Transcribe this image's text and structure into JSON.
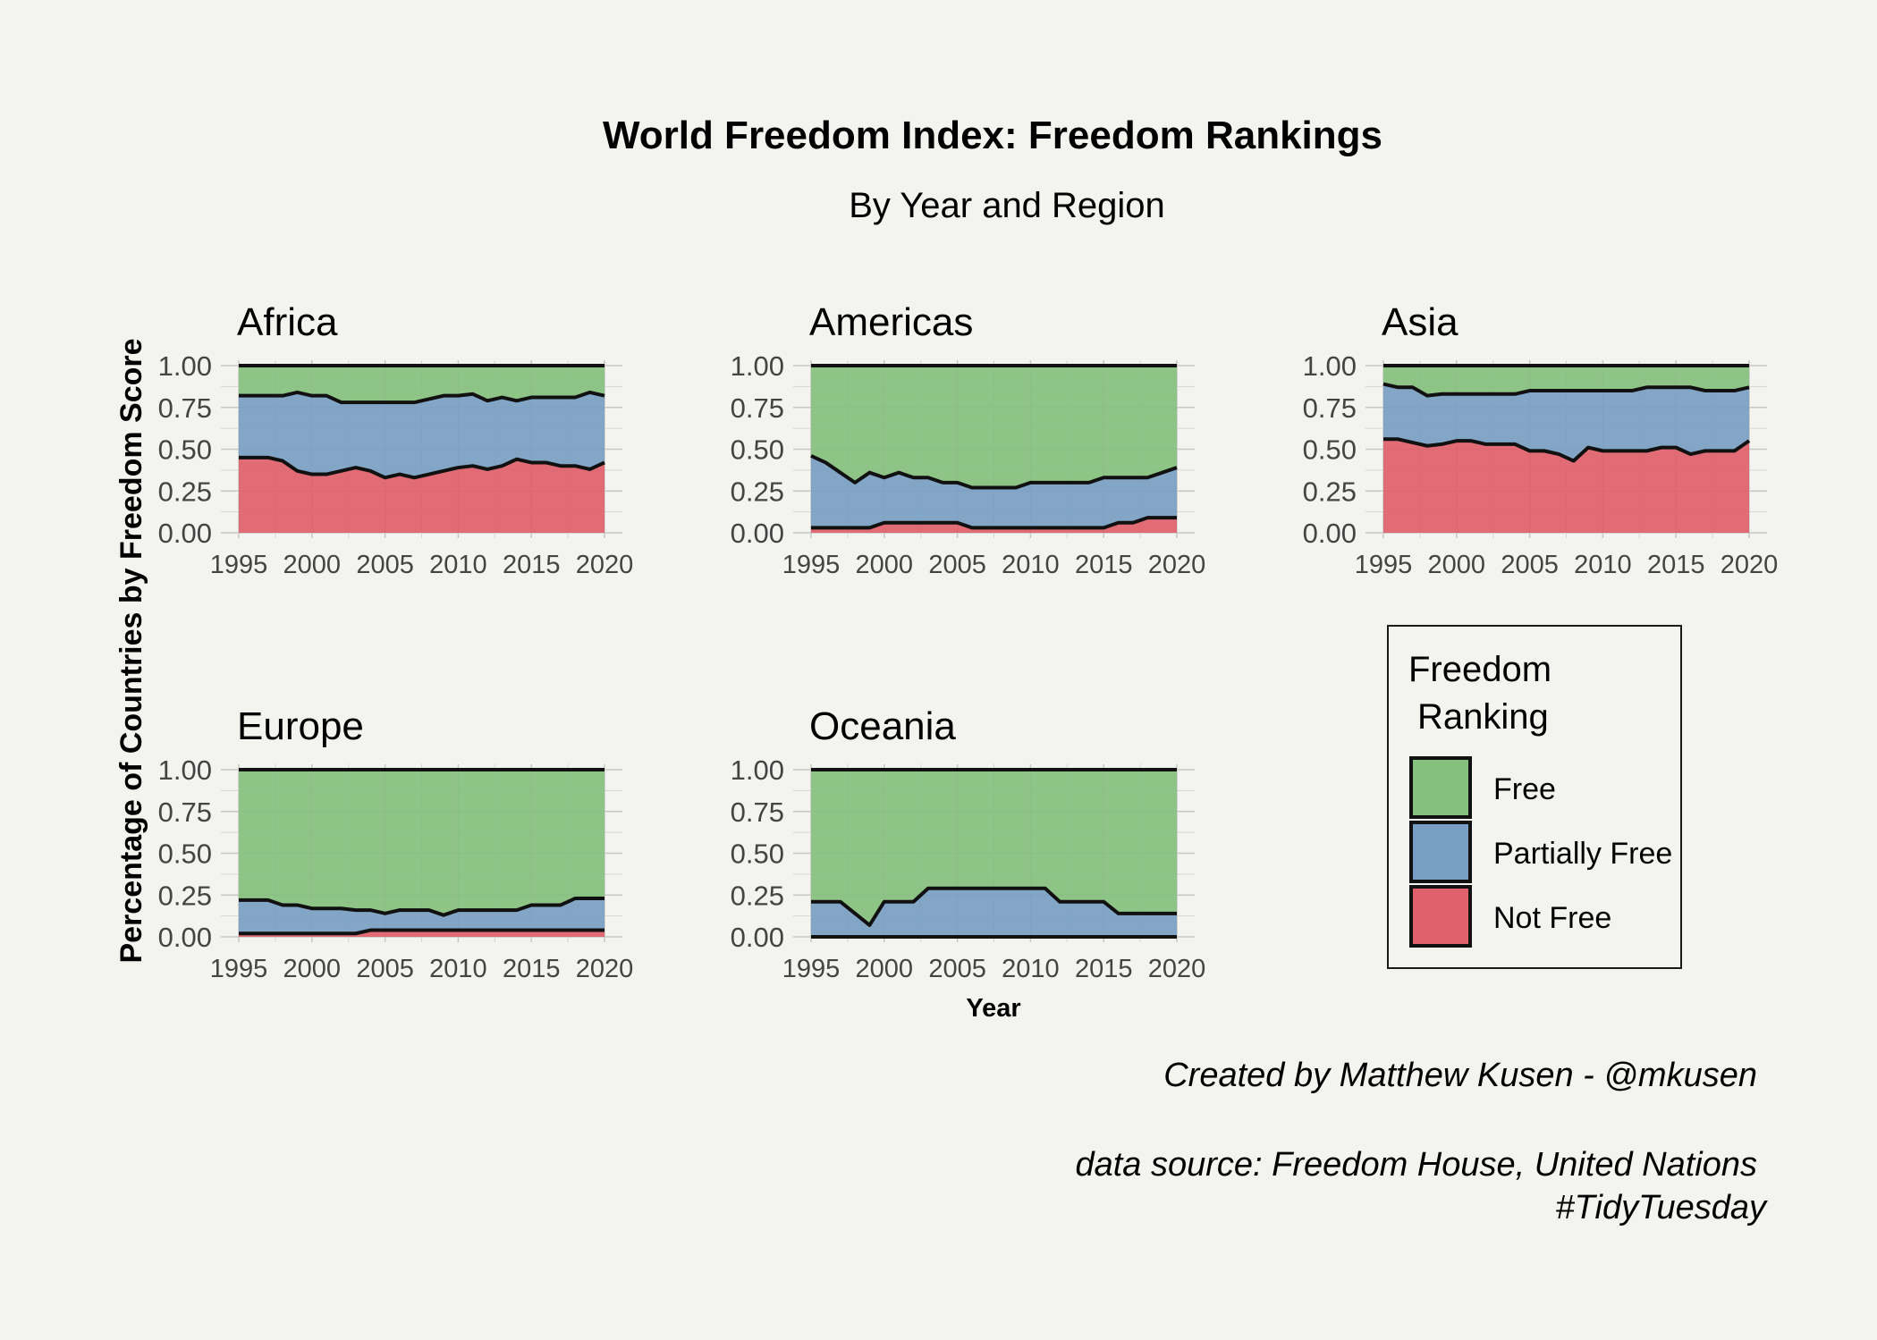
{
  "chart_data": {
    "type": "area",
    "title": "World Freedom Index: Freedom Rankings",
    "subtitle": "By Year and Region",
    "xlabel": "Year",
    "ylabel": "Percentage of Countries by Freedom Score",
    "xlim": [
      1995,
      2020
    ],
    "ylim": [
      0,
      1
    ],
    "x_ticks": [
      "1995",
      "2000",
      "2005",
      "2010",
      "2015",
      "2020"
    ],
    "y_ticks": [
      "0.00",
      "0.25",
      "0.50",
      "0.75",
      "1.00"
    ],
    "grid": true,
    "stacked": true,
    "legend": {
      "title_line1": "Freedom",
      "title_line2": "Ranking",
      "position": "right",
      "entries": [
        {
          "name": "Free",
          "color": "#86c07f"
        },
        {
          "name": "Partially Free",
          "color": "#7a9fc4"
        },
        {
          "name": "Not Free",
          "color": "#e0616c"
        }
      ]
    },
    "caption_line1": "Created by Matthew Kusen - @mkusen",
    "caption_line2": "data source: Freedom House, United Nations",
    "caption_line3": "#TidyTuesday",
    "x": [
      1995,
      1996,
      1997,
      1998,
      1999,
      2000,
      2001,
      2002,
      2003,
      2004,
      2005,
      2006,
      2007,
      2008,
      2009,
      2010,
      2011,
      2012,
      2013,
      2014,
      2015,
      2016,
      2017,
      2018,
      2019,
      2020
    ],
    "panels": [
      {
        "region": "Africa",
        "not_free": [
          0.45,
          0.45,
          0.45,
          0.43,
          0.37,
          0.35,
          0.35,
          0.37,
          0.39,
          0.37,
          0.33,
          0.35,
          0.33,
          0.35,
          0.37,
          0.39,
          0.4,
          0.38,
          0.4,
          0.44,
          0.42,
          0.42,
          0.4,
          0.4,
          0.38,
          0.42
        ],
        "not_free_plus_partial": [
          0.82,
          0.82,
          0.82,
          0.82,
          0.84,
          0.82,
          0.82,
          0.78,
          0.78,
          0.78,
          0.78,
          0.78,
          0.78,
          0.8,
          0.82,
          0.82,
          0.83,
          0.79,
          0.81,
          0.79,
          0.81,
          0.81,
          0.81,
          0.81,
          0.84,
          0.82
        ]
      },
      {
        "region": "Americas",
        "not_free": [
          0.03,
          0.03,
          0.03,
          0.03,
          0.03,
          0.06,
          0.06,
          0.06,
          0.06,
          0.06,
          0.06,
          0.03,
          0.03,
          0.03,
          0.03,
          0.03,
          0.03,
          0.03,
          0.03,
          0.03,
          0.03,
          0.06,
          0.06,
          0.09,
          0.09,
          0.09
        ],
        "not_free_plus_partial": [
          0.46,
          0.42,
          0.36,
          0.3,
          0.36,
          0.33,
          0.36,
          0.33,
          0.33,
          0.3,
          0.3,
          0.27,
          0.27,
          0.27,
          0.27,
          0.3,
          0.3,
          0.3,
          0.3,
          0.3,
          0.33,
          0.33,
          0.33,
          0.33,
          0.36,
          0.39
        ]
      },
      {
        "region": "Asia",
        "not_free": [
          0.56,
          0.56,
          0.54,
          0.52,
          0.53,
          0.55,
          0.55,
          0.53,
          0.53,
          0.53,
          0.49,
          0.49,
          0.47,
          0.43,
          0.51,
          0.49,
          0.49,
          0.49,
          0.49,
          0.51,
          0.51,
          0.47,
          0.49,
          0.49,
          0.49,
          0.55
        ],
        "not_free_plus_partial": [
          0.89,
          0.87,
          0.87,
          0.82,
          0.83,
          0.83,
          0.83,
          0.83,
          0.83,
          0.83,
          0.85,
          0.85,
          0.85,
          0.85,
          0.85,
          0.85,
          0.85,
          0.85,
          0.87,
          0.87,
          0.87,
          0.87,
          0.85,
          0.85,
          0.85,
          0.87
        ]
      },
      {
        "region": "Europe",
        "not_free": [
          0.02,
          0.02,
          0.02,
          0.02,
          0.02,
          0.02,
          0.02,
          0.02,
          0.02,
          0.04,
          0.04,
          0.04,
          0.04,
          0.04,
          0.04,
          0.04,
          0.04,
          0.04,
          0.04,
          0.04,
          0.04,
          0.04,
          0.04,
          0.04,
          0.04,
          0.04
        ],
        "not_free_plus_partial": [
          0.22,
          0.22,
          0.22,
          0.19,
          0.19,
          0.17,
          0.17,
          0.17,
          0.16,
          0.16,
          0.14,
          0.16,
          0.16,
          0.16,
          0.13,
          0.16,
          0.16,
          0.16,
          0.16,
          0.16,
          0.19,
          0.19,
          0.19,
          0.23,
          0.23,
          0.23
        ]
      },
      {
        "region": "Oceania",
        "not_free": [
          0,
          0,
          0,
          0,
          0,
          0,
          0,
          0,
          0,
          0,
          0,
          0,
          0,
          0,
          0,
          0,
          0,
          0,
          0,
          0,
          0,
          0,
          0,
          0,
          0,
          0
        ],
        "not_free_plus_partial": [
          0.21,
          0.21,
          0.21,
          0.14,
          0.07,
          0.21,
          0.21,
          0.21,
          0.29,
          0.29,
          0.29,
          0.29,
          0.29,
          0.29,
          0.29,
          0.29,
          0.29,
          0.21,
          0.21,
          0.21,
          0.21,
          0.14,
          0.14,
          0.14,
          0.14,
          0.14
        ]
      }
    ]
  }
}
